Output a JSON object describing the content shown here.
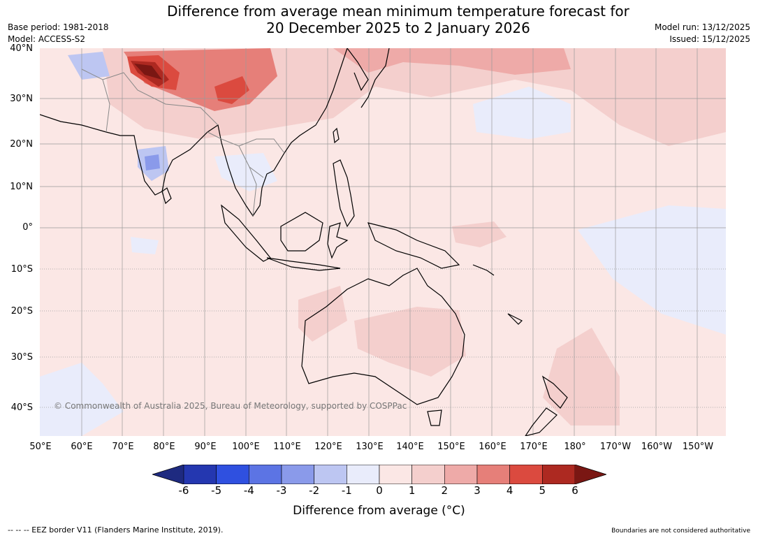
{
  "header": {
    "title_line1": "Difference from average mean minimum temperature forecast for",
    "title_line2": "20 December 2025 to 2 January 2026",
    "base_period": "Base period: 1981-2018",
    "model": "Model: ACCESS-S2",
    "model_run": "Model run: 13/12/2025",
    "issued": "Issued: 15/12/2025"
  },
  "map": {
    "lat_labels": [
      "40°N",
      "30°N",
      "20°N",
      "10°N",
      "0°",
      "10°S",
      "20°S",
      "30°S",
      "40°S"
    ],
    "lon_labels": [
      "50°E",
      "60°E",
      "70°E",
      "80°E",
      "90°E",
      "100°E",
      "110°E",
      "120°E",
      "130°E",
      "140°E",
      "150°E",
      "160°E",
      "170°E",
      "180°",
      "170°W",
      "160°W",
      "150°W"
    ],
    "copyright": "© Commonwealth of Australia 2025, Bureau of Meteorology, supported by COSPPac",
    "colors": {
      "background_anomaly": "#fbe7e5",
      "land_outline": "#000000",
      "border": "#888888",
      "grid": "#555555"
    }
  },
  "legend": {
    "ticks": [
      "-6",
      "-5",
      "-4",
      "-3",
      "-2",
      "-1",
      "0",
      "1",
      "2",
      "3",
      "4",
      "5",
      "6"
    ],
    "label": "Difference from average (°C)",
    "colors": [
      "#1e2a80",
      "#2437b0",
      "#2f50e0",
      "#5c74e4",
      "#8a9aea",
      "#bdc6f2",
      "#e9ecfb",
      "#fbe7e5",
      "#f4cfcd",
      "#eeaaa8",
      "#e67f79",
      "#db4a3f",
      "#ad2921",
      "#7a1713"
    ]
  },
  "footer": {
    "eez_note": "--  --  -- EEZ border V11 (Flanders Marine Institute, 2019).",
    "boundary_note": "Boundaries are not considered authoritative"
  }
}
